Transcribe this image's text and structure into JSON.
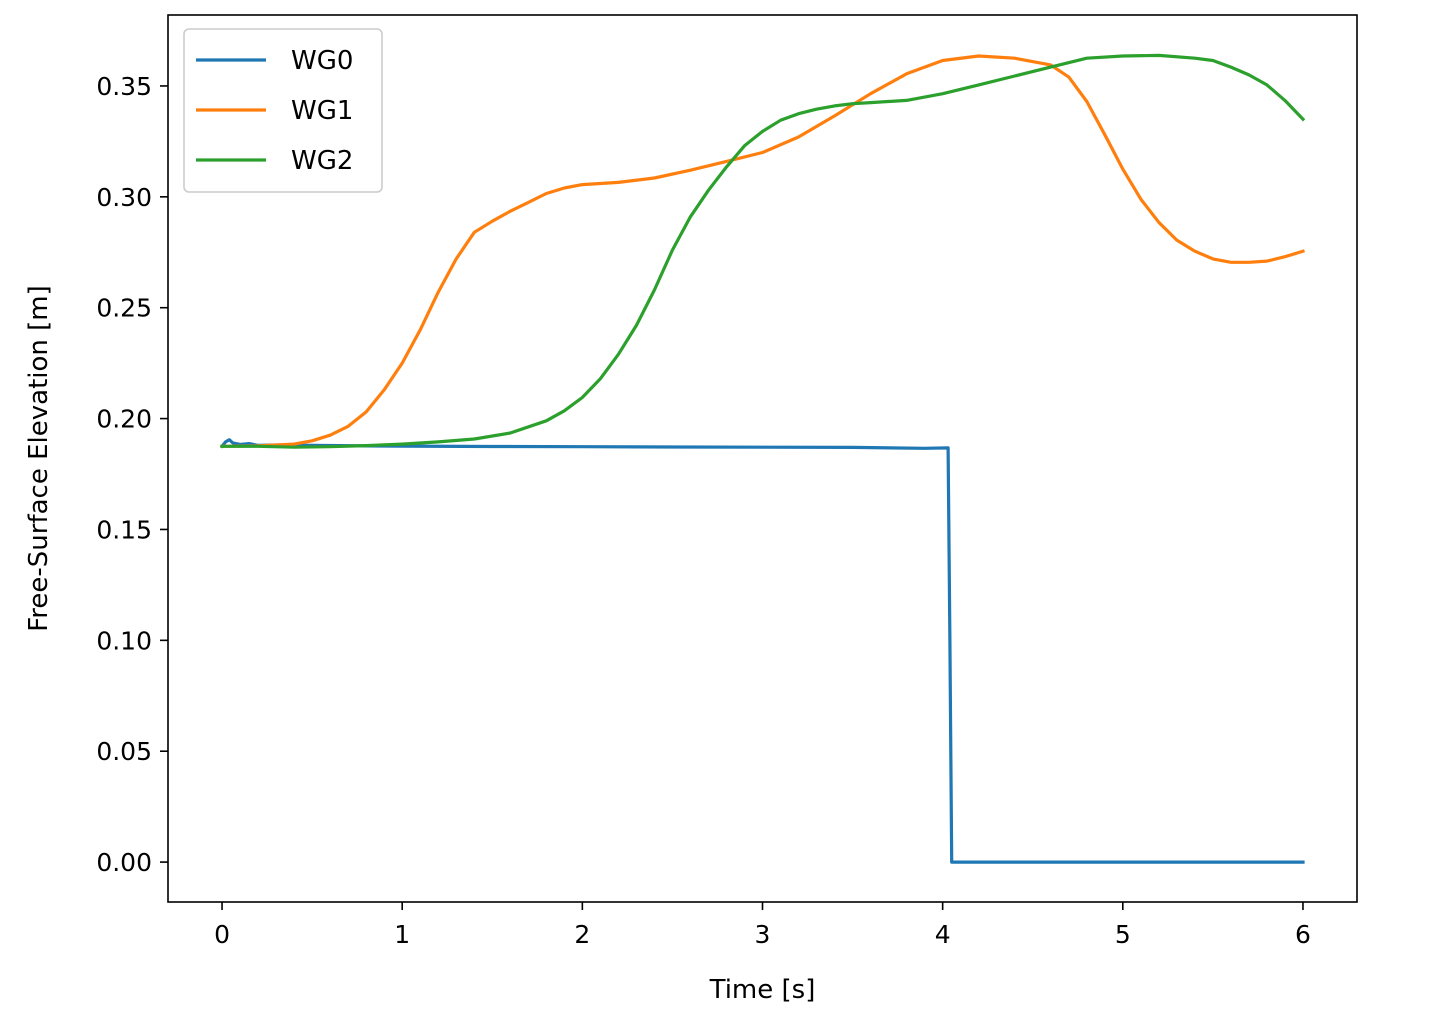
{
  "chart_data": {
    "type": "line",
    "title": "",
    "xlabel": "Time [s]",
    "ylabel": "Free-Surface Elevation [m]",
    "xlim": [
      -0.3,
      6.3
    ],
    "ylim": [
      -0.018,
      0.382
    ],
    "xticks": [
      0,
      1,
      2,
      3,
      4,
      5,
      6
    ],
    "xtick_labels": [
      "0",
      "1",
      "2",
      "3",
      "4",
      "5",
      "6"
    ],
    "yticks": [
      0.0,
      0.05,
      0.1,
      0.15,
      0.2,
      0.25,
      0.3,
      0.35
    ],
    "ytick_labels": [
      "0.00",
      "0.05",
      "0.10",
      "0.15",
      "0.20",
      "0.25",
      "0.30",
      "0.35"
    ],
    "grid": false,
    "legend_position": "top-left",
    "series": [
      {
        "name": "WG0",
        "color": "#1f77b4",
        "x": [
          0,
          0.02,
          0.04,
          0.06,
          0.1,
          0.15,
          0.2,
          0.3,
          0.5,
          0.8,
          1.0,
          1.5,
          2.0,
          2.5,
          3.0,
          3.5,
          3.9,
          4.03,
          4.04,
          4.05,
          4.5,
          5.0,
          5.5,
          6.0
        ],
        "y": [
          0.1875,
          0.1895,
          0.1905,
          0.189,
          0.1883,
          0.1887,
          0.1879,
          0.1881,
          0.1879,
          0.1877,
          0.1876,
          0.1874,
          0.1873,
          0.1872,
          0.1871,
          0.187,
          0.1866,
          0.1868,
          0.1,
          0.0,
          0.0,
          0.0,
          0.0,
          0.0
        ]
      },
      {
        "name": "WG1",
        "color": "#ff7f0e",
        "x": [
          0,
          0.2,
          0.4,
          0.5,
          0.6,
          0.7,
          0.8,
          0.9,
          1.0,
          1.1,
          1.2,
          1.3,
          1.4,
          1.5,
          1.6,
          1.7,
          1.8,
          1.9,
          2.0,
          2.2,
          2.4,
          2.6,
          2.8,
          3.0,
          3.2,
          3.4,
          3.6,
          3.8,
          4.0,
          4.2,
          4.4,
          4.6,
          4.7,
          4.8,
          4.9,
          5.0,
          5.1,
          5.2,
          5.3,
          5.4,
          5.5,
          5.6,
          5.7,
          5.8,
          5.9,
          6.0
        ],
        "y": [
          0.1875,
          0.1877,
          0.1885,
          0.19,
          0.1925,
          0.1965,
          0.203,
          0.213,
          0.225,
          0.24,
          0.257,
          0.272,
          0.284,
          0.289,
          0.2935,
          0.2975,
          0.3015,
          0.304,
          0.3055,
          0.3065,
          0.3085,
          0.312,
          0.316,
          0.32,
          0.327,
          0.3365,
          0.3465,
          0.3555,
          0.3615,
          0.3635,
          0.3625,
          0.3595,
          0.354,
          0.343,
          0.328,
          0.3125,
          0.299,
          0.2885,
          0.2805,
          0.2755,
          0.272,
          0.2705,
          0.2705,
          0.271,
          0.273,
          0.2755
        ]
      },
      {
        "name": "WG2",
        "color": "#2ca02c",
        "x": [
          0,
          0.2,
          0.4,
          0.6,
          0.8,
          1.0,
          1.2,
          1.4,
          1.6,
          1.8,
          1.9,
          2.0,
          2.1,
          2.2,
          2.3,
          2.4,
          2.5,
          2.6,
          2.7,
          2.8,
          2.9,
          3.0,
          3.1,
          3.2,
          3.3,
          3.4,
          3.5,
          3.6,
          3.8,
          4.0,
          4.2,
          4.4,
          4.6,
          4.8,
          5.0,
          5.2,
          5.4,
          5.5,
          5.6,
          5.7,
          5.8,
          5.9,
          6.0
        ],
        "y": [
          0.1875,
          0.1875,
          0.1871,
          0.1873,
          0.1878,
          0.1885,
          0.1895,
          0.1908,
          0.1935,
          0.199,
          0.2035,
          0.2095,
          0.218,
          0.229,
          0.242,
          0.258,
          0.276,
          0.291,
          0.303,
          0.3135,
          0.323,
          0.3295,
          0.3345,
          0.3375,
          0.3395,
          0.341,
          0.342,
          0.3425,
          0.3435,
          0.3465,
          0.3505,
          0.3545,
          0.3585,
          0.3625,
          0.3635,
          0.3638,
          0.3625,
          0.3615,
          0.3585,
          0.355,
          0.3505,
          0.3435,
          0.335
        ]
      }
    ]
  }
}
